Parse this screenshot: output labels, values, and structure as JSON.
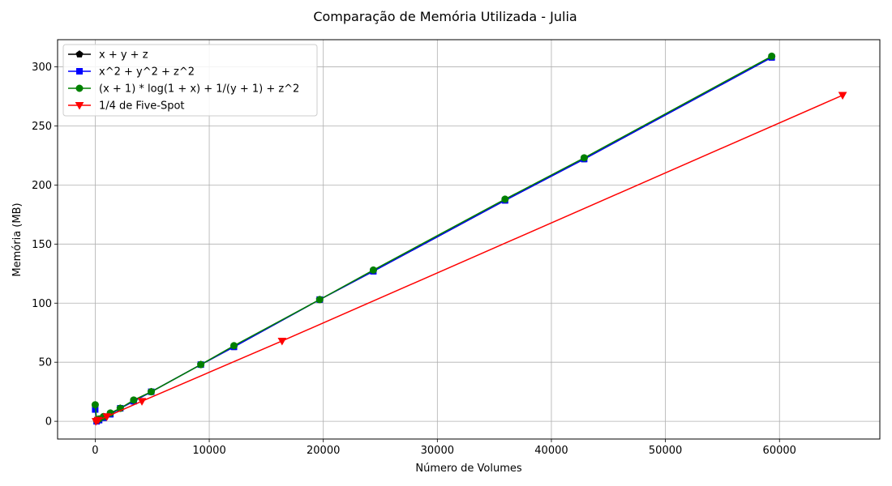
{
  "chart_data": {
    "type": "line",
    "title": "Comparação de Memória Utilizada - Julia",
    "xlabel": "Número de Volumes",
    "ylabel": "Memória (MB)",
    "xlim": [
      -3300,
      68800
    ],
    "ylim": [
      -15,
      323
    ],
    "xticks": [
      0,
      10000,
      20000,
      30000,
      40000,
      50000,
      60000
    ],
    "yticks": [
      0,
      50,
      100,
      150,
      200,
      250,
      300
    ],
    "grid": true,
    "legend_position": "top-left",
    "series": [
      {
        "name": "x + y + z",
        "color": "#000000",
        "marker": "pentagon",
        "points": [
          [
            125,
            0
          ],
          [
            343,
            1
          ],
          [
            729,
            3
          ],
          [
            1331,
            6
          ],
          [
            2197,
            11
          ],
          [
            3375,
            17
          ],
          [
            4913,
            25
          ],
          [
            9261,
            48
          ],
          [
            12167,
            63
          ],
          [
            19683,
            103
          ],
          [
            24389,
            127
          ],
          [
            35937,
            187
          ],
          [
            42875,
            222
          ],
          [
            59319,
            308
          ]
        ]
      },
      {
        "name": "x^2 + y^2 + z^2",
        "color": "#0000ff",
        "marker": "square",
        "points": [
          [
            0,
            10
          ],
          [
            125,
            0
          ],
          [
            343,
            1
          ],
          [
            729,
            3
          ],
          [
            1331,
            6
          ],
          [
            2197,
            11
          ],
          [
            3375,
            17
          ],
          [
            4913,
            25
          ],
          [
            9261,
            48
          ],
          [
            12167,
            63
          ],
          [
            19683,
            103
          ],
          [
            24389,
            127
          ],
          [
            35937,
            187
          ],
          [
            42875,
            222
          ],
          [
            59319,
            308
          ]
        ]
      },
      {
        "name": "(x + 1) * log(1 + x) + 1/(y + 1) + z^2",
        "color": "#008000",
        "marker": "circle",
        "points": [
          [
            0,
            14
          ],
          [
            125,
            1
          ],
          [
            343,
            2
          ],
          [
            729,
            4
          ],
          [
            1331,
            7
          ],
          [
            2197,
            11
          ],
          [
            3375,
            18
          ],
          [
            4913,
            25
          ],
          [
            9261,
            48
          ],
          [
            12167,
            64
          ],
          [
            19683,
            103
          ],
          [
            24389,
            128
          ],
          [
            35937,
            188
          ],
          [
            42875,
            223
          ],
          [
            59319,
            309
          ]
        ]
      },
      {
        "name": "1/4 de Five-Spot",
        "color": "#ff0000",
        "marker": "triangle-down",
        "points": [
          [
            64,
            0
          ],
          [
            256,
            1
          ],
          [
            1024,
            4
          ],
          [
            4096,
            17
          ],
          [
            16384,
            68
          ],
          [
            65536,
            276
          ]
        ]
      }
    ]
  }
}
